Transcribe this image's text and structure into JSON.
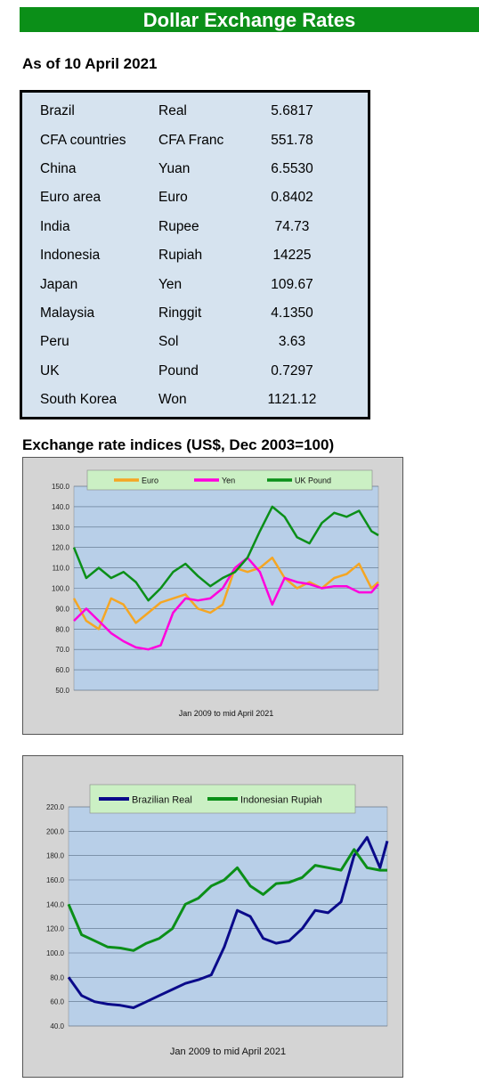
{
  "header": {
    "title": "Dollar Exchange Rates",
    "as_of": "As of 10 April 2021"
  },
  "rates": [
    {
      "country": "Brazil",
      "currency": "Real",
      "value": "5.6817"
    },
    {
      "country": "CFA countries",
      "currency": "CFA Franc",
      "value": "551.78"
    },
    {
      "country": "China",
      "currency": "Yuan",
      "value": "6.5530"
    },
    {
      "country": "Euro area",
      "currency": "Euro",
      "value": "0.8402"
    },
    {
      "country": "India",
      "currency": "Rupee",
      "value": "74.73"
    },
    {
      "country": "Indonesia",
      "currency": "Rupiah",
      "value": "14225"
    },
    {
      "country": "Japan",
      "currency": "Yen",
      "value": "109.67"
    },
    {
      "country": "Malaysia",
      "currency": "Ringgit",
      "value": "4.1350"
    },
    {
      "country": "Peru",
      "currency": "Sol",
      "value": "3.63"
    },
    {
      "country": "UK",
      "currency": "Pound",
      "value": "0.7297"
    },
    {
      "country": "South Korea",
      "currency": "Won",
      "value": "1121.12"
    }
  ],
  "section_title": "Exchange rate indices (US$, Dec 2003=100)",
  "colors": {
    "banner": "#0b8f18",
    "plot_bg": "#b8cfe8",
    "frame_bg": "#d4d4d4",
    "legend_bg": "#cbf0c4"
  },
  "chart_data": [
    {
      "type": "line",
      "title": "",
      "xlabel": "Jan 2009  to mid April 2021",
      "ylabel": "",
      "x_range": [
        "Jan 2009",
        "Apr 2021"
      ],
      "ylim": [
        50,
        150
      ],
      "yticks": [
        "50.0",
        "60.0",
        "70.0",
        "80.0",
        "90.0",
        "100.0",
        "110.0",
        "120.0",
        "130.0",
        "140.0",
        "150.0"
      ],
      "grid": true,
      "legend_position": "top",
      "series": [
        {
          "name": "Euro",
          "color": "#f5a623",
          "x": [
            2009.0,
            2009.5,
            2010.0,
            2010.5,
            2011.0,
            2011.5,
            2012.0,
            2012.5,
            2013.0,
            2013.5,
            2014.0,
            2014.5,
            2015.0,
            2015.5,
            2016.0,
            2016.5,
            2017.0,
            2017.5,
            2018.0,
            2018.5,
            2019.0,
            2019.5,
            2020.0,
            2020.5,
            2021.0,
            2021.28
          ],
          "values": [
            95,
            84,
            80,
            95,
            92,
            83,
            88,
            93,
            95,
            97,
            90,
            88,
            92,
            110,
            108,
            110,
            115,
            105,
            100,
            103,
            100,
            105,
            107,
            112,
            100,
            103
          ]
        },
        {
          "name": "Yen",
          "color": "#ff00dd",
          "x": [
            2009.0,
            2009.5,
            2010.0,
            2010.5,
            2011.0,
            2011.5,
            2012.0,
            2012.5,
            2013.0,
            2013.5,
            2014.0,
            2014.5,
            2015.0,
            2015.5,
            2016.0,
            2016.5,
            2017.0,
            2017.5,
            2018.0,
            2018.5,
            2019.0,
            2019.5,
            2020.0,
            2020.5,
            2021.0,
            2021.28
          ],
          "values": [
            84,
            90,
            84,
            78,
            74,
            71,
            70,
            72,
            88,
            95,
            94,
            95,
            100,
            110,
            115,
            108,
            92,
            105,
            103,
            102,
            100,
            101,
            101,
            98,
            98,
            102
          ]
        },
        {
          "name": "UK Pound",
          "color": "#0b8f18",
          "x": [
            2009.0,
            2009.5,
            2010.0,
            2010.5,
            2011.0,
            2011.5,
            2012.0,
            2012.5,
            2013.0,
            2013.5,
            2014.0,
            2014.5,
            2015.0,
            2015.5,
            2016.0,
            2016.5,
            2017.0,
            2017.5,
            2018.0,
            2018.5,
            2019.0,
            2019.5,
            2020.0,
            2020.5,
            2021.0,
            2021.28
          ],
          "values": [
            120,
            105,
            110,
            105,
            108,
            103,
            94,
            100,
            108,
            112,
            106,
            101,
            105,
            108,
            115,
            128,
            140,
            135,
            125,
            122,
            132,
            137,
            135,
            138,
            128,
            126
          ]
        }
      ]
    },
    {
      "type": "line",
      "title": "",
      "xlabel": "Jan 2009  to mid April 2021",
      "ylabel": "",
      "x_range": [
        "Jan 2009",
        "Apr 2021"
      ],
      "ylim": [
        40,
        220
      ],
      "yticks": [
        "40.0",
        "60.0",
        "80.0",
        "100.0",
        "120.0",
        "140.0",
        "160.0",
        "180.0",
        "200.0",
        "220.0"
      ],
      "grid": true,
      "legend_position": "top",
      "series": [
        {
          "name": "Brazilian Real",
          "color": "#0a0a8a",
          "x": [
            2009.0,
            2009.5,
            2010.0,
            2010.5,
            2011.0,
            2011.5,
            2012.0,
            2012.5,
            2013.0,
            2013.5,
            2014.0,
            2014.5,
            2015.0,
            2015.5,
            2016.0,
            2016.5,
            2017.0,
            2017.5,
            2018.0,
            2018.5,
            2019.0,
            2019.5,
            2020.0,
            2020.5,
            2021.0,
            2021.28
          ],
          "values": [
            80,
            65,
            60,
            58,
            57,
            55,
            60,
            65,
            70,
            75,
            78,
            82,
            105,
            135,
            130,
            112,
            108,
            110,
            120,
            135,
            133,
            142,
            180,
            195,
            170,
            192
          ]
        },
        {
          "name": "Indonesian Rupiah",
          "color": "#0b8f18",
          "x": [
            2009.0,
            2009.5,
            2010.0,
            2010.5,
            2011.0,
            2011.5,
            2012.0,
            2012.5,
            2013.0,
            2013.5,
            2014.0,
            2014.5,
            2015.0,
            2015.5,
            2016.0,
            2016.5,
            2017.0,
            2017.5,
            2018.0,
            2018.5,
            2019.0,
            2019.5,
            2020.0,
            2020.5,
            2021.0,
            2021.28
          ],
          "values": [
            140,
            115,
            110,
            105,
            104,
            102,
            108,
            112,
            120,
            140,
            145,
            155,
            160,
            170,
            155,
            148,
            157,
            158,
            162,
            172,
            170,
            168,
            185,
            170,
            168,
            168
          ]
        }
      ]
    }
  ]
}
